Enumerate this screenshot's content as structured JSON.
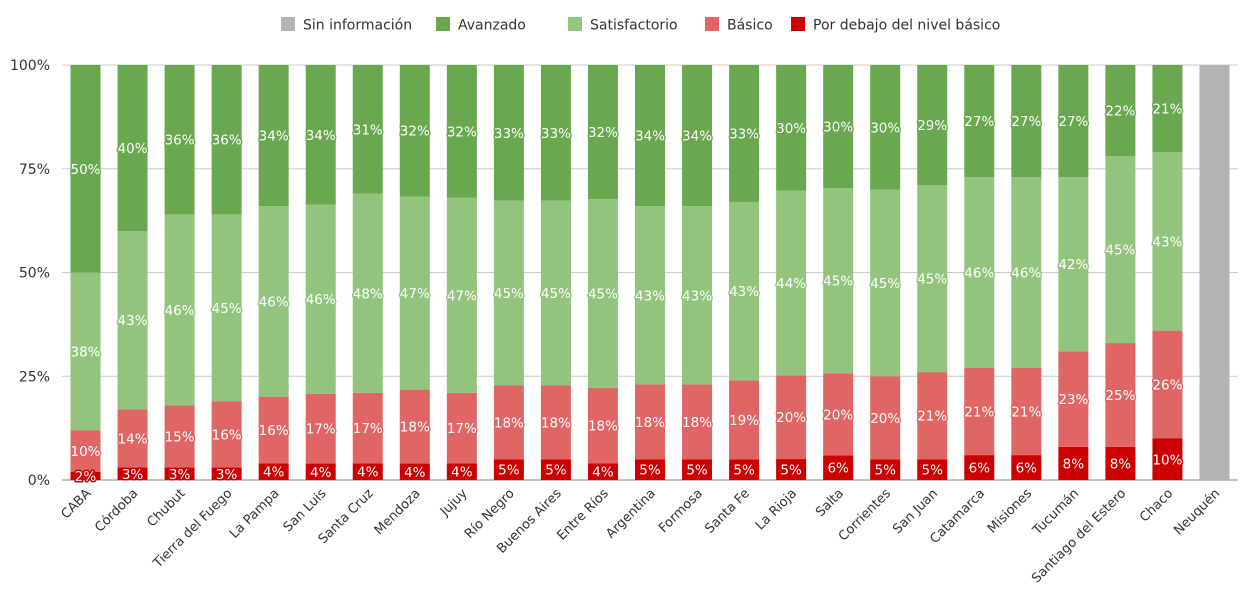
{
  "chart_data": {
    "type": "bar",
    "stacked": true,
    "normalized": true,
    "ylim": [
      0,
      100
    ],
    "yticks": [
      "0%",
      "25%",
      "50%",
      "75%",
      "100%"
    ],
    "grid": true,
    "legend_position": "top",
    "series_order_bottom_to_top": [
      "Por debajo del nivel básico",
      "Básico",
      "Satisfactorio",
      "Avanzado",
      "Sin información"
    ],
    "series": [
      {
        "name": "Sin información",
        "color": "#b3b3b3",
        "values": [
          0,
          0,
          0,
          0,
          0,
          0,
          0,
          0,
          0,
          0,
          0,
          0,
          0,
          0,
          0,
          0,
          0,
          0,
          0,
          0,
          0,
          0,
          0,
          0,
          100
        ]
      },
      {
        "name": "Avanzado",
        "color": "#6aa84f",
        "values": [
          50,
          40,
          36,
          36,
          34,
          34,
          31,
          32,
          32,
          33,
          33,
          32,
          34,
          34,
          33,
          30,
          30,
          30,
          29,
          27,
          27,
          27,
          22,
          21,
          0
        ]
      },
      {
        "name": "Satisfactorio",
        "color": "#93c47d",
        "values": [
          38,
          43,
          46,
          45,
          46,
          46,
          48,
          47,
          47,
          45,
          45,
          45,
          43,
          43,
          43,
          44,
          45,
          45,
          45,
          46,
          46,
          42,
          45,
          43,
          0
        ]
      },
      {
        "name": "Básico",
        "color": "#e06666",
        "values": [
          10,
          14,
          15,
          16,
          16,
          17,
          17,
          18,
          17,
          18,
          18,
          18,
          18,
          18,
          19,
          20,
          20,
          20,
          21,
          21,
          21,
          23,
          25,
          26,
          0
        ]
      },
      {
        "name": "Por debajo del nivel básico",
        "color": "#cc0000",
        "values": [
          2,
          3,
          3,
          3,
          4,
          4,
          4,
          4,
          4,
          5,
          5,
          4,
          5,
          5,
          5,
          5,
          6,
          5,
          5,
          6,
          6,
          8,
          8,
          10,
          0
        ]
      }
    ],
    "categories": [
      "CABA",
      "Córdoba",
      "Chubut",
      "Tierra del Fuego",
      "La Pampa",
      "San Luis",
      "Santa Cruz",
      "Mendoza",
      "Jujuy",
      "Río Negro",
      "Buenos Aires",
      "Entre Ríos",
      "Argentina",
      "Formosa",
      "Santa Fe",
      "La Rioja",
      "Salta",
      "Corrientes",
      "San Juan",
      "Catamarca",
      "Misiones",
      "Tucumán",
      "Santiago del Estero",
      "Chaco",
      "Neuquén"
    ],
    "data_labels": {
      "Avanzado": [
        "50%",
        "40%",
        "36%",
        "36%",
        "34%",
        "34%",
        "31%",
        "32%",
        "32%",
        "33%",
        "33%",
        "32%",
        "34%",
        "34%",
        "33%",
        "30%",
        "30%",
        "30%",
        "29%",
        "27%",
        "27%",
        "27%",
        "22%",
        "21%",
        ""
      ],
      "Satisfactorio": [
        "38%",
        "43%",
        "46%",
        "45%",
        "46%",
        "46%",
        "48%",
        "47%",
        "47%",
        "45%",
        "45%",
        "45%",
        "43%",
        "43%",
        "43%",
        "44%",
        "45%",
        "45%",
        "45%",
        "46%",
        "46%",
        "42%",
        "45%",
        "43%",
        ""
      ],
      "Básico": [
        "10%",
        "14%",
        "15%",
        "16%",
        "16%",
        "17%",
        "17%",
        "18%",
        "17%",
        "18%",
        "18%",
        "18%",
        "18%",
        "18%",
        "19%",
        "20%",
        "20%",
        "20%",
        "21%",
        "21%",
        "21%",
        "23%",
        "25%",
        "26%",
        ""
      ],
      "Por debajo del nivel básico": [
        "2%",
        "3%",
        "3%",
        "3%",
        "4%",
        "4%",
        "4%",
        "4%",
        "4%",
        "5%",
        "5%",
        "4%",
        "5%",
        "5%",
        "5%",
        "5%",
        "6%",
        "5%",
        "5%",
        "6%",
        "6%",
        "8%",
        "8%",
        "10%",
        ""
      ]
    }
  }
}
